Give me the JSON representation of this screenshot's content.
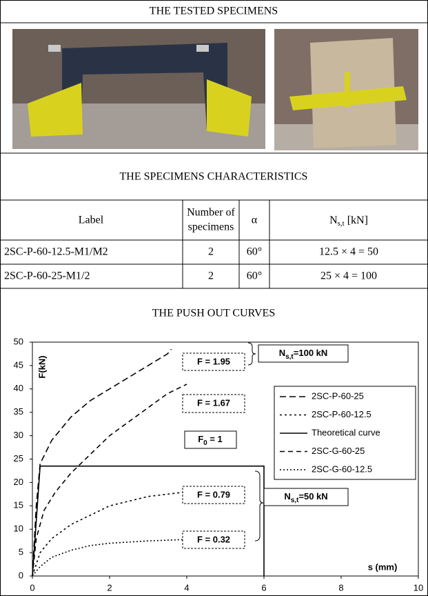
{
  "header": {
    "title": "THE TESTED SPECIMENS"
  },
  "table": {
    "title": "THE SPECIMENS CHARACTERISTICS",
    "columns": [
      "Label",
      [
        "Number of",
        "specimens"
      ],
      "α",
      {
        "symbol": "N",
        "subscript": "s,t",
        "unit": " [kN]"
      }
    ],
    "rows": [
      [
        "2SC-P-60-12.5-M1/M2",
        2,
        "60°",
        "12.5 × 4 = 50"
      ],
      [
        "2SC-P-60-25-M1/2",
        2,
        "60°",
        "25 × 4 = 100"
      ]
    ]
  },
  "chart_data": {
    "type": "line",
    "title": "THE PUSH OUT CURVES",
    "x_label": "s (mm)",
    "y_label": "F(kN)",
    "xlim": [
      0,
      10
    ],
    "ylim": [
      0,
      50
    ],
    "xticks": [
      0,
      2,
      4,
      6,
      8,
      10
    ],
    "yticks": [
      0,
      5,
      10,
      15,
      20,
      25,
      30,
      35,
      40,
      45,
      50
    ],
    "series": [
      {
        "name": "2SC-P-60-25",
        "color": "#000000",
        "dash": "9 5",
        "x": [
          0,
          0.1,
          0.2,
          0.5,
          1,
          1.5,
          2,
          2.5,
          3,
          3.5,
          3.6
        ],
        "values": [
          0,
          15,
          24,
          29,
          34,
          37.5,
          40,
          42.5,
          45,
          47.5,
          48.5
        ]
      },
      {
        "name": "2SC-P-60-12.5",
        "color": "#000000",
        "dash": "3 4",
        "x": [
          0,
          0.2,
          0.5,
          1,
          1.5,
          2,
          2.5,
          3,
          3.5,
          4,
          4.5,
          5
        ],
        "values": [
          0,
          5,
          8,
          11,
          13,
          15,
          16,
          17,
          17.5,
          18,
          18.5,
          19
        ]
      },
      {
        "name": "Theoretical curve",
        "color": "#000000",
        "dash": "none",
        "x": [
          0,
          0.2,
          6,
          6
        ],
        "values": [
          0,
          23.5,
          23.5,
          0
        ]
      },
      {
        "name": "2SC-G-60-25",
        "color": "#000000",
        "dash": "7 5",
        "x": [
          0,
          0.1,
          0.3,
          0.6,
          1,
          1.5,
          2,
          2.5,
          3,
          3.5,
          4
        ],
        "values": [
          0,
          8,
          14,
          18,
          22,
          26,
          30,
          33,
          36,
          39,
          41
        ]
      },
      {
        "name": "2SC-G-60-12.5",
        "color": "#000000",
        "dash": "2 3",
        "x": [
          0,
          0.2,
          0.5,
          1,
          1.5,
          2,
          3,
          4,
          5
        ],
        "values": [
          0,
          2,
          4,
          5.5,
          6.5,
          7,
          7.5,
          7.8,
          8
        ]
      }
    ],
    "annotations": [
      {
        "text": "F = 1.95"
      },
      {
        "text": "F = 1.67"
      },
      {
        "symbol": "F",
        "subscript": "0",
        "text": " = 1"
      },
      {
        "text": "F = 0.79"
      },
      {
        "text": "F = 0.32"
      }
    ],
    "groups": [
      {
        "symbol": "N",
        "subscript": "s,t",
        "text": "=100 kN"
      },
      {
        "symbol": "N",
        "subscript": "s,t",
        "text": "=50 kN"
      }
    ]
  }
}
